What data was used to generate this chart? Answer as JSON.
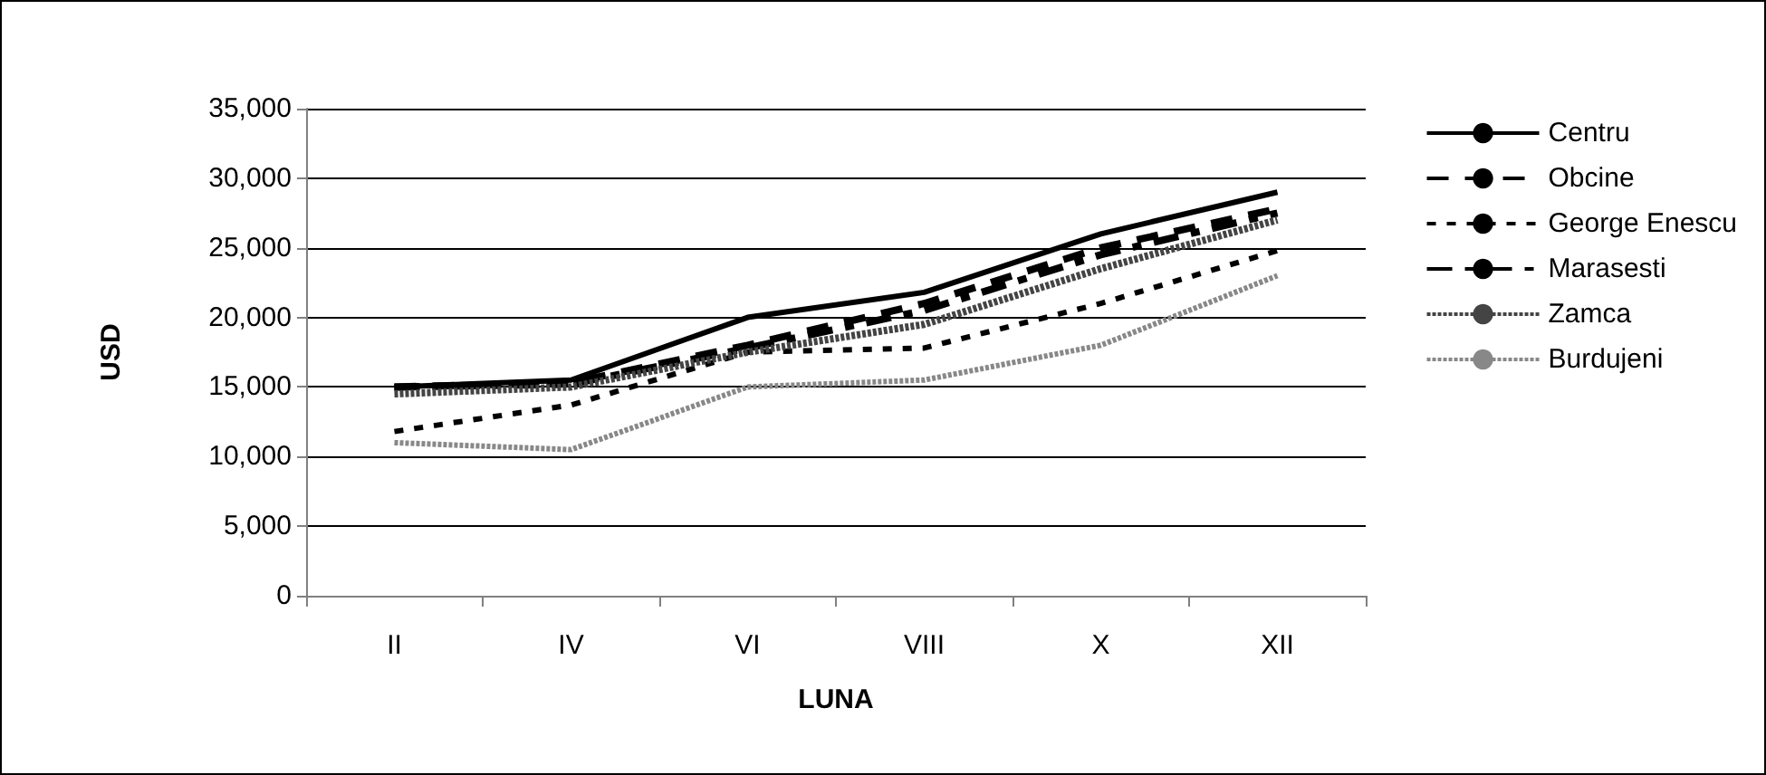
{
  "chart_data": {
    "type": "line",
    "xlabel": "LUNA",
    "ylabel": "USD",
    "categories": [
      "II",
      "IV",
      "VI",
      "VIII",
      "X",
      "XII"
    ],
    "series": [
      {
        "name": "Centru",
        "color": "#000000",
        "line_style": "solid",
        "values": [
          15000,
          15500,
          20000,
          21800,
          26000,
          29000
        ]
      },
      {
        "name": "Obcine",
        "color": "#000000",
        "line_style": "dashed",
        "values": [
          15000,
          15300,
          18000,
          21000,
          25000,
          27800
        ]
      },
      {
        "name": "George Enescu",
        "color": "#000000",
        "line_style": "dashed",
        "values": [
          11800,
          13700,
          17500,
          17800,
          21000,
          24800
        ]
      },
      {
        "name": "Marasesti",
        "color": "#000000",
        "line_style": "dashed",
        "values": [
          15000,
          15200,
          17800,
          20500,
          24500,
          27500
        ]
      },
      {
        "name": "Zamca",
        "color": "#444444",
        "line_style": "dotted",
        "values": [
          14500,
          15000,
          17500,
          19500,
          23500,
          27000
        ]
      },
      {
        "name": "Burdujeni",
        "color": "#888888",
        "line_style": "dotted",
        "values": [
          11000,
          10500,
          15000,
          15500,
          18000,
          23000
        ]
      }
    ],
    "ylim": [
      0,
      35000
    ],
    "yticks": [
      0,
      {
        "value": 5000,
        "label": "5,000"
      },
      {
        "value": 10000,
        "label": "10,000"
      },
      {
        "value": 15000,
        "label": "15,000"
      },
      {
        "value": 20000,
        "label": "20,000"
      },
      {
        "value": 25000,
        "label": "25,000"
      },
      {
        "value": 30000,
        "label": "30,000"
      },
      {
        "value": 35000,
        "label": "35,000"
      }
    ],
    "grid": "y",
    "legend": "right",
    "marker": "none"
  }
}
